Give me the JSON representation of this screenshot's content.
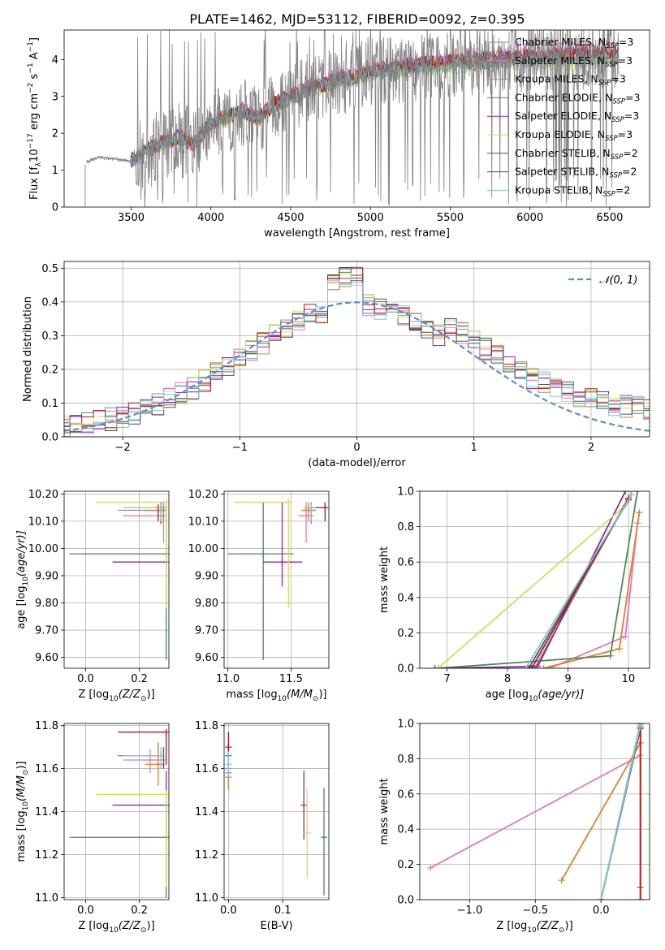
{
  "figure": {
    "title": "PLATE=1462, MJD=53112, FIBERID=0092, z=0.395",
    "colors": {
      "Chabrier MILES": "#8c8c8c",
      "Salpeter MILES": "#e377c2",
      "Kroupa MILES": "#e0802c",
      "Chabrier ELODIE": "#4a8a5c",
      "Salpeter ELODIE": "#8c2aa8",
      "Kroupa ELODIE": "#cfe05a",
      "Chabrier STELIB": "#555555",
      "Salpeter STELIB": "#b01818",
      "Kroupa STELIB": "#7cc8d8",
      "gauss": "#5b8bd6"
    }
  },
  "chart_data": [
    {
      "id": "spectrum",
      "type": "line",
      "xlabel": "wavelength [Angstrom, rest frame]",
      "ylabel": "Flux [f",
      "ylabel_sub": "λ",
      "ylabel_rest": "10",
      "ylabel_exp": "−17",
      "ylabel_units": " erg cm",
      "ylabel_exp2": "−2",
      "ylabel_s": " s",
      "ylabel_exp3": "−1",
      "ylabel_A": " A",
      "ylabel_exp4": "−1",
      "ylabel_end": "]",
      "xlim": [
        3080,
        6750
      ],
      "ylim": [
        0,
        4.8
      ],
      "xticks": [
        3500,
        4000,
        4500,
        5000,
        5500,
        6000,
        6500
      ],
      "yticks": [
        0,
        1,
        2,
        3,
        4
      ],
      "legend": [
        {
          "model": "Chabrier MILES",
          "text": "Chabrier MILES, N",
          "sub": "SSP",
          "tail": "=3"
        },
        {
          "model": "Salpeter MILES",
          "text": "Salpeter MILES, N",
          "sub": "SSP",
          "tail": "=3"
        },
        {
          "model": "Kroupa MILES",
          "text": "Kroupa MILES, N",
          "sub": "SSP",
          "tail": "=3"
        },
        {
          "model": "Chabrier ELODIE",
          "text": "Chabrier ELODIE, N",
          "sub": "SSP",
          "tail": "=3"
        },
        {
          "model": "Salpeter ELODIE",
          "text": "Salpeter ELODIE, N",
          "sub": "SSP",
          "tail": "=3"
        },
        {
          "model": "Kroupa ELODIE",
          "text": "Kroupa ELODIE, N",
          "sub": "SSP",
          "tail": "=3"
        },
        {
          "model": "Chabrier STELIB",
          "text": "Chabrier STELIB, N",
          "sub": "SSP",
          "tail": "=2"
        },
        {
          "model": "Salpeter STELIB",
          "text": "Salpeter STELIB, N",
          "sub": "SSP",
          "tail": "=2"
        },
        {
          "model": "Kroupa STELIB",
          "text": "Kroupa STELIB, N",
          "sub": "SSP",
          "tail": "=2"
        }
      ],
      "continuum": [
        [
          3210,
          1.2
        ],
        [
          3300,
          1.35
        ],
        [
          3400,
          1.3
        ],
        [
          3500,
          1.25
        ],
        [
          3600,
          1.55
        ],
        [
          3700,
          1.75
        ],
        [
          3800,
          1.9
        ],
        [
          3900,
          1.7
        ],
        [
          4000,
          2.3
        ],
        [
          4100,
          2.4
        ],
        [
          4200,
          2.6
        ],
        [
          4300,
          2.4
        ],
        [
          4400,
          2.8
        ],
        [
          4500,
          2.95
        ],
        [
          4600,
          3.2
        ],
        [
          4700,
          3.3
        ],
        [
          4800,
          3.45
        ],
        [
          4900,
          3.5
        ],
        [
          5000,
          3.65
        ],
        [
          5100,
          3.7
        ],
        [
          5200,
          3.75
        ],
        [
          5300,
          3.8
        ],
        [
          5400,
          3.85
        ],
        [
          5500,
          3.9
        ],
        [
          5600,
          3.95
        ],
        [
          5700,
          3.95
        ],
        [
          5800,
          4.0
        ],
        [
          5900,
          4.0
        ],
        [
          6000,
          4.05
        ],
        [
          6100,
          4.05
        ],
        [
          6200,
          4.05
        ],
        [
          6300,
          4.1
        ],
        [
          6400,
          4.1
        ],
        [
          6500,
          4.1
        ],
        [
          6560,
          4.1
        ]
      ],
      "data_range": [
        3220,
        6560
      ],
      "data_noise_start": 3520
    },
    {
      "id": "residuals",
      "type": "line",
      "xlabel": "(data-model)/error",
      "ylabel": "Normed distribution",
      "xlim": [
        -2.5,
        2.5
      ],
      "ylim": [
        0,
        0.52
      ],
      "xticks": [
        -2,
        -1,
        0,
        1,
        2
      ],
      "yticks": [
        0.0,
        0.1,
        0.2,
        0.3,
        0.4,
        0.5
      ],
      "legend": "𝒩(0, 1)",
      "gauss": {
        "mu": 0,
        "sigma": 1
      }
    },
    {
      "id": "age-vs-Z",
      "type": "scatter",
      "xlabel": "Z [log",
      "xlabel_sub": "10",
      "xlabel_tail": "(Z/Z",
      "xlabel_sub2": "⊙",
      "xlabel_end": ")]",
      "ylabel": "age  [log",
      "ylabel_sub": "10",
      "ylabel_tail": "(age/yr)]",
      "xlim": [
        -0.08,
        0.31
      ],
      "ylim": [
        9.56,
        10.21
      ],
      "xticks": [
        0.0,
        0.2
      ],
      "yticks": [
        9.6,
        9.7,
        9.8,
        9.9,
        10.0,
        10.1,
        10.2
      ],
      "points": [
        {
          "m": "Chabrier MILES",
          "x": 0.29,
          "y": 10.14,
          "xlo": 0.12,
          "xhi": 0.3,
          "ylo": 10.09,
          "yhi": 10.17
        },
        {
          "m": "Salpeter MILES",
          "x": 0.29,
          "y": 10.12,
          "xlo": 0.14,
          "xhi": 0.3,
          "ylo": 10.02,
          "yhi": 10.17
        },
        {
          "m": "Kroupa MILES",
          "x": 0.29,
          "y": 10.14,
          "xlo": 0.22,
          "xhi": 0.3,
          "ylo": 10.1,
          "yhi": 10.17
        },
        {
          "m": "Chabrier ELODIE",
          "x": 0.3,
          "y": 9.98,
          "xlo": -0.06,
          "xhi": 0.3,
          "ylo": 9.59,
          "yhi": 10.17
        },
        {
          "m": "Salpeter ELODIE",
          "x": 0.3,
          "y": 9.95,
          "xlo": 0.1,
          "xhi": 0.3,
          "ylo": 9.9,
          "yhi": 10.0
        },
        {
          "m": "Kroupa ELODIE",
          "x": 0.3,
          "y": 10.17,
          "xlo": 0.04,
          "xhi": 0.3,
          "ylo": 9.78,
          "yhi": 10.17
        },
        {
          "m": "Chabrier STELIB",
          "x": 0.28,
          "y": 10.15,
          "xlo": 0.26,
          "xhi": 0.3,
          "ylo": 10.09,
          "yhi": 10.17
        },
        {
          "m": "Salpeter STELIB",
          "x": 0.27,
          "y": 10.15,
          "xlo": 0.26,
          "xhi": 0.3,
          "ylo": 10.1,
          "yhi": 10.16
        },
        {
          "m": "Kroupa STELIB",
          "x": 0.28,
          "y": 10.15,
          "xlo": 0.14,
          "xhi": 0.3,
          "ylo": 10.1,
          "yhi": 10.17
        }
      ]
    },
    {
      "id": "age-vs-mass",
      "type": "scatter",
      "xlabel": "mass [log",
      "xlabel_sub": "10",
      "xlabel_tail": "(M/M",
      "xlabel_sub2": "⊙",
      "xlabel_end": ")]",
      "xlim": [
        10.97,
        11.8
      ],
      "ylim": [
        9.56,
        10.21
      ],
      "xticks": [
        11.0,
        11.5
      ],
      "yticks": [
        9.6,
        9.7,
        9.8,
        9.9,
        10.0,
        10.1,
        10.2
      ],
      "points": [
        {
          "m": "Chabrier MILES",
          "x": 11.66,
          "y": 10.14,
          "xlo": 11.6,
          "xhi": 11.7,
          "ylo": 10.09,
          "yhi": 10.17
        },
        {
          "m": "Salpeter MILES",
          "x": 11.62,
          "y": 10.12,
          "xlo": 11.56,
          "xhi": 11.68,
          "ylo": 10.02,
          "yhi": 10.17
        },
        {
          "m": "Kroupa MILES",
          "x": 11.64,
          "y": 10.14,
          "xlo": 11.58,
          "xhi": 11.68,
          "ylo": 10.1,
          "yhi": 10.17
        },
        {
          "m": "Chabrier ELODIE",
          "x": 11.28,
          "y": 9.98,
          "xlo": 11.0,
          "xhi": 11.52,
          "ylo": 9.59,
          "yhi": 10.17
        },
        {
          "m": "Salpeter ELODIE",
          "x": 11.43,
          "y": 9.95,
          "xlo": 11.28,
          "xhi": 11.59,
          "ylo": 9.86,
          "yhi": 10.17
        },
        {
          "m": "Kroupa ELODIE",
          "x": 11.48,
          "y": 10.17,
          "xlo": 11.05,
          "xhi": 11.5,
          "ylo": 9.78,
          "yhi": 10.17
        },
        {
          "m": "Chabrier STELIB",
          "x": 11.66,
          "y": 10.15,
          "xlo": 11.62,
          "xhi": 11.7,
          "ylo": 10.1,
          "yhi": 10.17
        },
        {
          "m": "Salpeter STELIB",
          "x": 11.77,
          "y": 10.15,
          "xlo": 11.62,
          "xhi": 11.79,
          "ylo": 10.1,
          "yhi": 10.17
        },
        {
          "m": "Kroupa STELIB",
          "x": 11.66,
          "y": 10.15,
          "xlo": 11.6,
          "xhi": 11.7,
          "ylo": 10.1,
          "yhi": 10.17
        }
      ]
    },
    {
      "id": "weight-vs-age",
      "type": "line",
      "xlabel": "age  [log",
      "xlabel_sub": "10",
      "xlabel_tail": "(age/yr)]",
      "ylabel": "mass weight",
      "xlim": [
        6.55,
        10.35
      ],
      "ylim": [
        0,
        1.0
      ],
      "xticks": [
        7,
        8,
        9,
        10
      ],
      "yticks": [
        0.0,
        0.2,
        0.4,
        0.6,
        0.8,
        1.0
      ],
      "series": [
        {
          "m": "Chabrier MILES",
          "pts": [
            [
              8.45,
              0.0
            ],
            [
              10.0,
              0.96
            ],
            [
              10.05,
              1.0
            ]
          ]
        },
        {
          "m": "Salpeter MILES",
          "pts": [
            [
              8.7,
              0.0
            ],
            [
              9.95,
              0.18
            ],
            [
              10.15,
              0.82
            ]
          ]
        },
        {
          "m": "Kroupa MILES",
          "pts": [
            [
              8.6,
              0.0
            ],
            [
              9.85,
              0.11
            ],
            [
              10.18,
              0.88
            ]
          ]
        },
        {
          "m": "Chabrier ELODIE",
          "pts": [
            [
              6.85,
              0.0
            ],
            [
              9.7,
              0.07
            ],
            [
              10.15,
              1.0
            ]
          ]
        },
        {
          "m": "Salpeter ELODIE",
          "pts": [
            [
              6.8,
              0.0
            ],
            [
              8.5,
              0.01
            ],
            [
              9.95,
              1.0
            ]
          ]
        },
        {
          "m": "Kroupa ELODIE",
          "pts": [
            [
              6.85,
              0.0
            ],
            [
              9.95,
              0.92
            ],
            [
              10.05,
              1.0
            ]
          ]
        },
        {
          "m": "Chabrier STELIB",
          "pts": [
            [
              8.35,
              0.0
            ],
            [
              10.0,
              0.95
            ]
          ]
        },
        {
          "m": "Salpeter STELIB",
          "pts": [
            [
              8.4,
              0.0
            ],
            [
              10.0,
              0.96
            ]
          ]
        },
        {
          "m": "Kroupa STELIB",
          "pts": [
            [
              8.3,
              0.0
            ],
            [
              10.05,
              0.98
            ]
          ]
        }
      ]
    },
    {
      "id": "mass-vs-Z",
      "type": "scatter",
      "xlabel": "Z [log",
      "xlabel_sub": "10",
      "xlabel_tail": "(Z/Z",
      "xlabel_sub2": "⊙",
      "xlabel_end": ")]",
      "ylabel": "mass [log",
      "ylabel_sub": "10",
      "ylabel_tail": "(M/M",
      "ylabel_sub2": "⊙",
      "ylabel_end": ")]",
      "xlim": [
        -0.08,
        0.31
      ],
      "ylim": [
        10.99,
        11.81
      ],
      "xticks": [
        0.0,
        0.2
      ],
      "yticks": [
        11.0,
        11.2,
        11.4,
        11.6,
        11.8
      ],
      "points": [
        {
          "m": "Chabrier MILES",
          "x": 0.27,
          "y": 11.66,
          "xlo": 0.12,
          "xhi": 0.3,
          "ylo": 11.58,
          "yhi": 11.72
        },
        {
          "m": "Salpeter MILES",
          "x": 0.24,
          "y": 11.64,
          "xlo": 0.14,
          "xhi": 0.3,
          "ylo": 11.58,
          "yhi": 11.69
        },
        {
          "m": "Kroupa MILES",
          "x": 0.27,
          "y": 11.62,
          "xlo": 0.22,
          "xhi": 0.3,
          "ylo": 11.52,
          "yhi": 11.72
        },
        {
          "m": "Chabrier ELODIE",
          "x": 0.3,
          "y": 11.28,
          "xlo": -0.06,
          "xhi": 0.3,
          "ylo": 11.0,
          "yhi": 11.5
        },
        {
          "m": "Salpeter ELODIE",
          "x": 0.3,
          "y": 11.43,
          "xlo": 0.1,
          "xhi": 0.3,
          "ylo": 11.28,
          "yhi": 11.59
        },
        {
          "m": "Kroupa ELODIE",
          "x": 0.3,
          "y": 11.48,
          "xlo": 0.04,
          "xhi": 0.3,
          "ylo": 11.05,
          "yhi": 11.5
        },
        {
          "m": "Chabrier STELIB",
          "x": 0.29,
          "y": 11.66,
          "xlo": 0.26,
          "xhi": 0.3,
          "ylo": 11.6,
          "yhi": 11.7
        },
        {
          "m": "Salpeter STELIB",
          "x": 0.3,
          "y": 11.77,
          "xlo": 0.12,
          "xhi": 0.3,
          "ylo": 11.62,
          "yhi": 11.77
        },
        {
          "m": "Kroupa STELIB",
          "x": 0.28,
          "y": 11.66,
          "xlo": 0.14,
          "xhi": 0.3,
          "ylo": 11.6,
          "yhi": 11.7
        }
      ]
    },
    {
      "id": "mass-vs-EBV",
      "type": "scatter",
      "xlabel": "E(B-V)",
      "xlim": [
        -0.008,
        0.185
      ],
      "ylim": [
        10.99,
        11.81
      ],
      "xticks": [
        0.0,
        0.1
      ],
      "yticks": [
        11.0,
        11.2,
        11.4,
        11.6,
        11.8
      ],
      "points": [
        {
          "m": "Chabrier MILES",
          "x": 0.0,
          "y": 11.58,
          "ylo": 11.52,
          "yhi": 11.64
        },
        {
          "m": "Salpeter MILES",
          "x": 0.0,
          "y": 11.6,
          "ylo": 11.55,
          "yhi": 11.66
        },
        {
          "m": "Kroupa MILES",
          "x": 0.0,
          "y": 11.56,
          "ylo": 11.5,
          "yhi": 11.62
        },
        {
          "m": "Chabrier ELODIE",
          "x": 0.176,
          "y": 11.28,
          "ylo": 11.01,
          "yhi": 11.51
        },
        {
          "m": "Salpeter ELODIE",
          "x": 0.139,
          "y": 11.43,
          "ylo": 11.27,
          "yhi": 11.59
        },
        {
          "m": "Kroupa ELODIE",
          "x": 0.145,
          "y": 11.3,
          "ylo": 11.09,
          "yhi": 11.51
        },
        {
          "m": "Chabrier STELIB",
          "x": 0.0,
          "y": 11.66,
          "ylo": 11.6,
          "yhi": 11.72
        },
        {
          "m": "Salpeter STELIB",
          "x": 0.0,
          "y": 11.7,
          "ylo": 11.64,
          "yhi": 11.77
        },
        {
          "m": "Kroupa STELIB",
          "x": 0.0,
          "y": 11.62,
          "ylo": 11.56,
          "yhi": 11.68
        }
      ]
    },
    {
      "id": "weight-vs-Z",
      "type": "line",
      "xlabel": "Z [log",
      "xlabel_sub": "10",
      "xlabel_tail": "(Z/Z",
      "xlabel_sub2": "⊙",
      "xlabel_end": ")]",
      "ylabel": "mass weight",
      "xlim": [
        -1.38,
        0.37
      ],
      "ylim": [
        0,
        1.0
      ],
      "xticks": [
        -1.0,
        -0.5,
        0.0
      ],
      "yticks": [
        0.0,
        0.2,
        0.4,
        0.6,
        0.8,
        1.0
      ],
      "series": [
        {
          "m": "Chabrier MILES",
          "pts": [
            [
              0.0,
              0.0
            ],
            [
              0.3,
              1.0
            ]
          ]
        },
        {
          "m": "Salpeter MILES",
          "pts": [
            [
              -1.3,
              0.18
            ],
            [
              0.3,
              0.82
            ]
          ]
        },
        {
          "m": "Kroupa MILES",
          "pts": [
            [
              -0.3,
              0.11
            ],
            [
              0.3,
              0.89
            ]
          ]
        },
        {
          "m": "Chabrier ELODIE",
          "pts": [
            [
              0.0,
              0.0
            ],
            [
              0.3,
              0.98
            ]
          ]
        },
        {
          "m": "Salpeter ELODIE",
          "pts": [
            [
              0.3,
              0.0
            ],
            [
              0.3,
              0.07
            ],
            [
              0.3,
              1.0
            ]
          ]
        },
        {
          "m": "Kroupa ELODIE",
          "pts": [
            [
              0.3,
              0.0
            ],
            [
              0.3,
              1.0
            ]
          ]
        },
        {
          "m": "Chabrier STELIB",
          "pts": [
            [
              0.0,
              0.0
            ],
            [
              0.3,
              0.97
            ]
          ]
        },
        {
          "m": "Salpeter STELIB",
          "pts": [
            [
              0.3,
              0.0
            ],
            [
              0.3,
              1.0
            ]
          ]
        },
        {
          "m": "Kroupa STELIB",
          "pts": [
            [
              0.0,
              0.0
            ],
            [
              0.3,
              0.99
            ]
          ]
        }
      ]
    }
  ]
}
